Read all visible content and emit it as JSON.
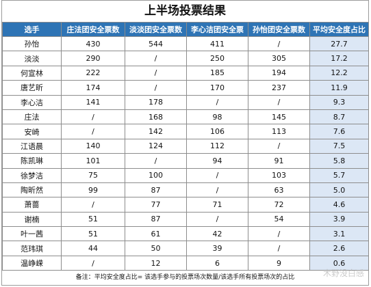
{
  "title": "上半场投票结果",
  "headers": [
    "选手",
    "庄法团安全票数",
    "淡淡团安全票数",
    "李心洁团安全票",
    "孙怡团安全票数",
    "平均安全度占比"
  ],
  "rows": [
    {
      "name": "孙怡",
      "c1": "430",
      "c2": "544",
      "c3": "411",
      "c4": "/",
      "avg": "27.7"
    },
    {
      "name": "淡淡",
      "c1": "290",
      "c2": "/",
      "c3": "250",
      "c4": "305",
      "avg": "17.2"
    },
    {
      "name": "何宣林",
      "c1": "222",
      "c2": "/",
      "c3": "185",
      "c4": "194",
      "avg": "12.2"
    },
    {
      "name": "唐艺昕",
      "c1": "174",
      "c2": "/",
      "c3": "170",
      "c4": "237",
      "avg": "11.9"
    },
    {
      "name": "李心洁",
      "c1": "141",
      "c2": "178",
      "c3": "/",
      "c4": "/",
      "avg": "9.3"
    },
    {
      "name": "庄法",
      "c1": "/",
      "c2": "168",
      "c3": "98",
      "c4": "145",
      "avg": "8.7"
    },
    {
      "name": "安崎",
      "c1": "/",
      "c2": "142",
      "c3": "106",
      "c4": "113",
      "avg": "7.6"
    },
    {
      "name": "江语晨",
      "c1": "140",
      "c2": "124",
      "c3": "112",
      "c4": "/",
      "avg": "7.5"
    },
    {
      "name": "陈凯琳",
      "c1": "101",
      "c2": "/",
      "c3": "94",
      "c4": "91",
      "avg": "5.8"
    },
    {
      "name": "徐梦洁",
      "c1": "75",
      "c2": "100",
      "c3": "/",
      "c4": "103",
      "avg": "5.7"
    },
    {
      "name": "陶昕然",
      "c1": "99",
      "c2": "87",
      "c3": "/",
      "c4": "63",
      "avg": "5.0"
    },
    {
      "name": "萧蔷",
      "c1": "/",
      "c2": "77",
      "c3": "71",
      "c4": "72",
      "avg": "4.6"
    },
    {
      "name": "谢楠",
      "c1": "51",
      "c2": "87",
      "c3": "/",
      "c4": "54",
      "avg": "3.9"
    },
    {
      "name": "叶一茜",
      "c1": "51",
      "c2": "61",
      "c3": "42",
      "c4": "/",
      "avg": "3.1"
    },
    {
      "name": "范玮琪",
      "c1": "44",
      "c2": "50",
      "c3": "39",
      "c4": "/",
      "avg": "2.6"
    },
    {
      "name": "温峥嵘",
      "c1": "/",
      "c2": "12",
      "c3": "6",
      "c4": "9",
      "avg": "0.6"
    }
  ],
  "note": "备注：平均安全度占比= 该选手参与的投票场次数量/该选手所有投票场次的占比",
  "watermark": "木野没白感",
  "colors": {
    "header_bg": "#2e74b5",
    "avg_bg": "#dce7f5"
  }
}
